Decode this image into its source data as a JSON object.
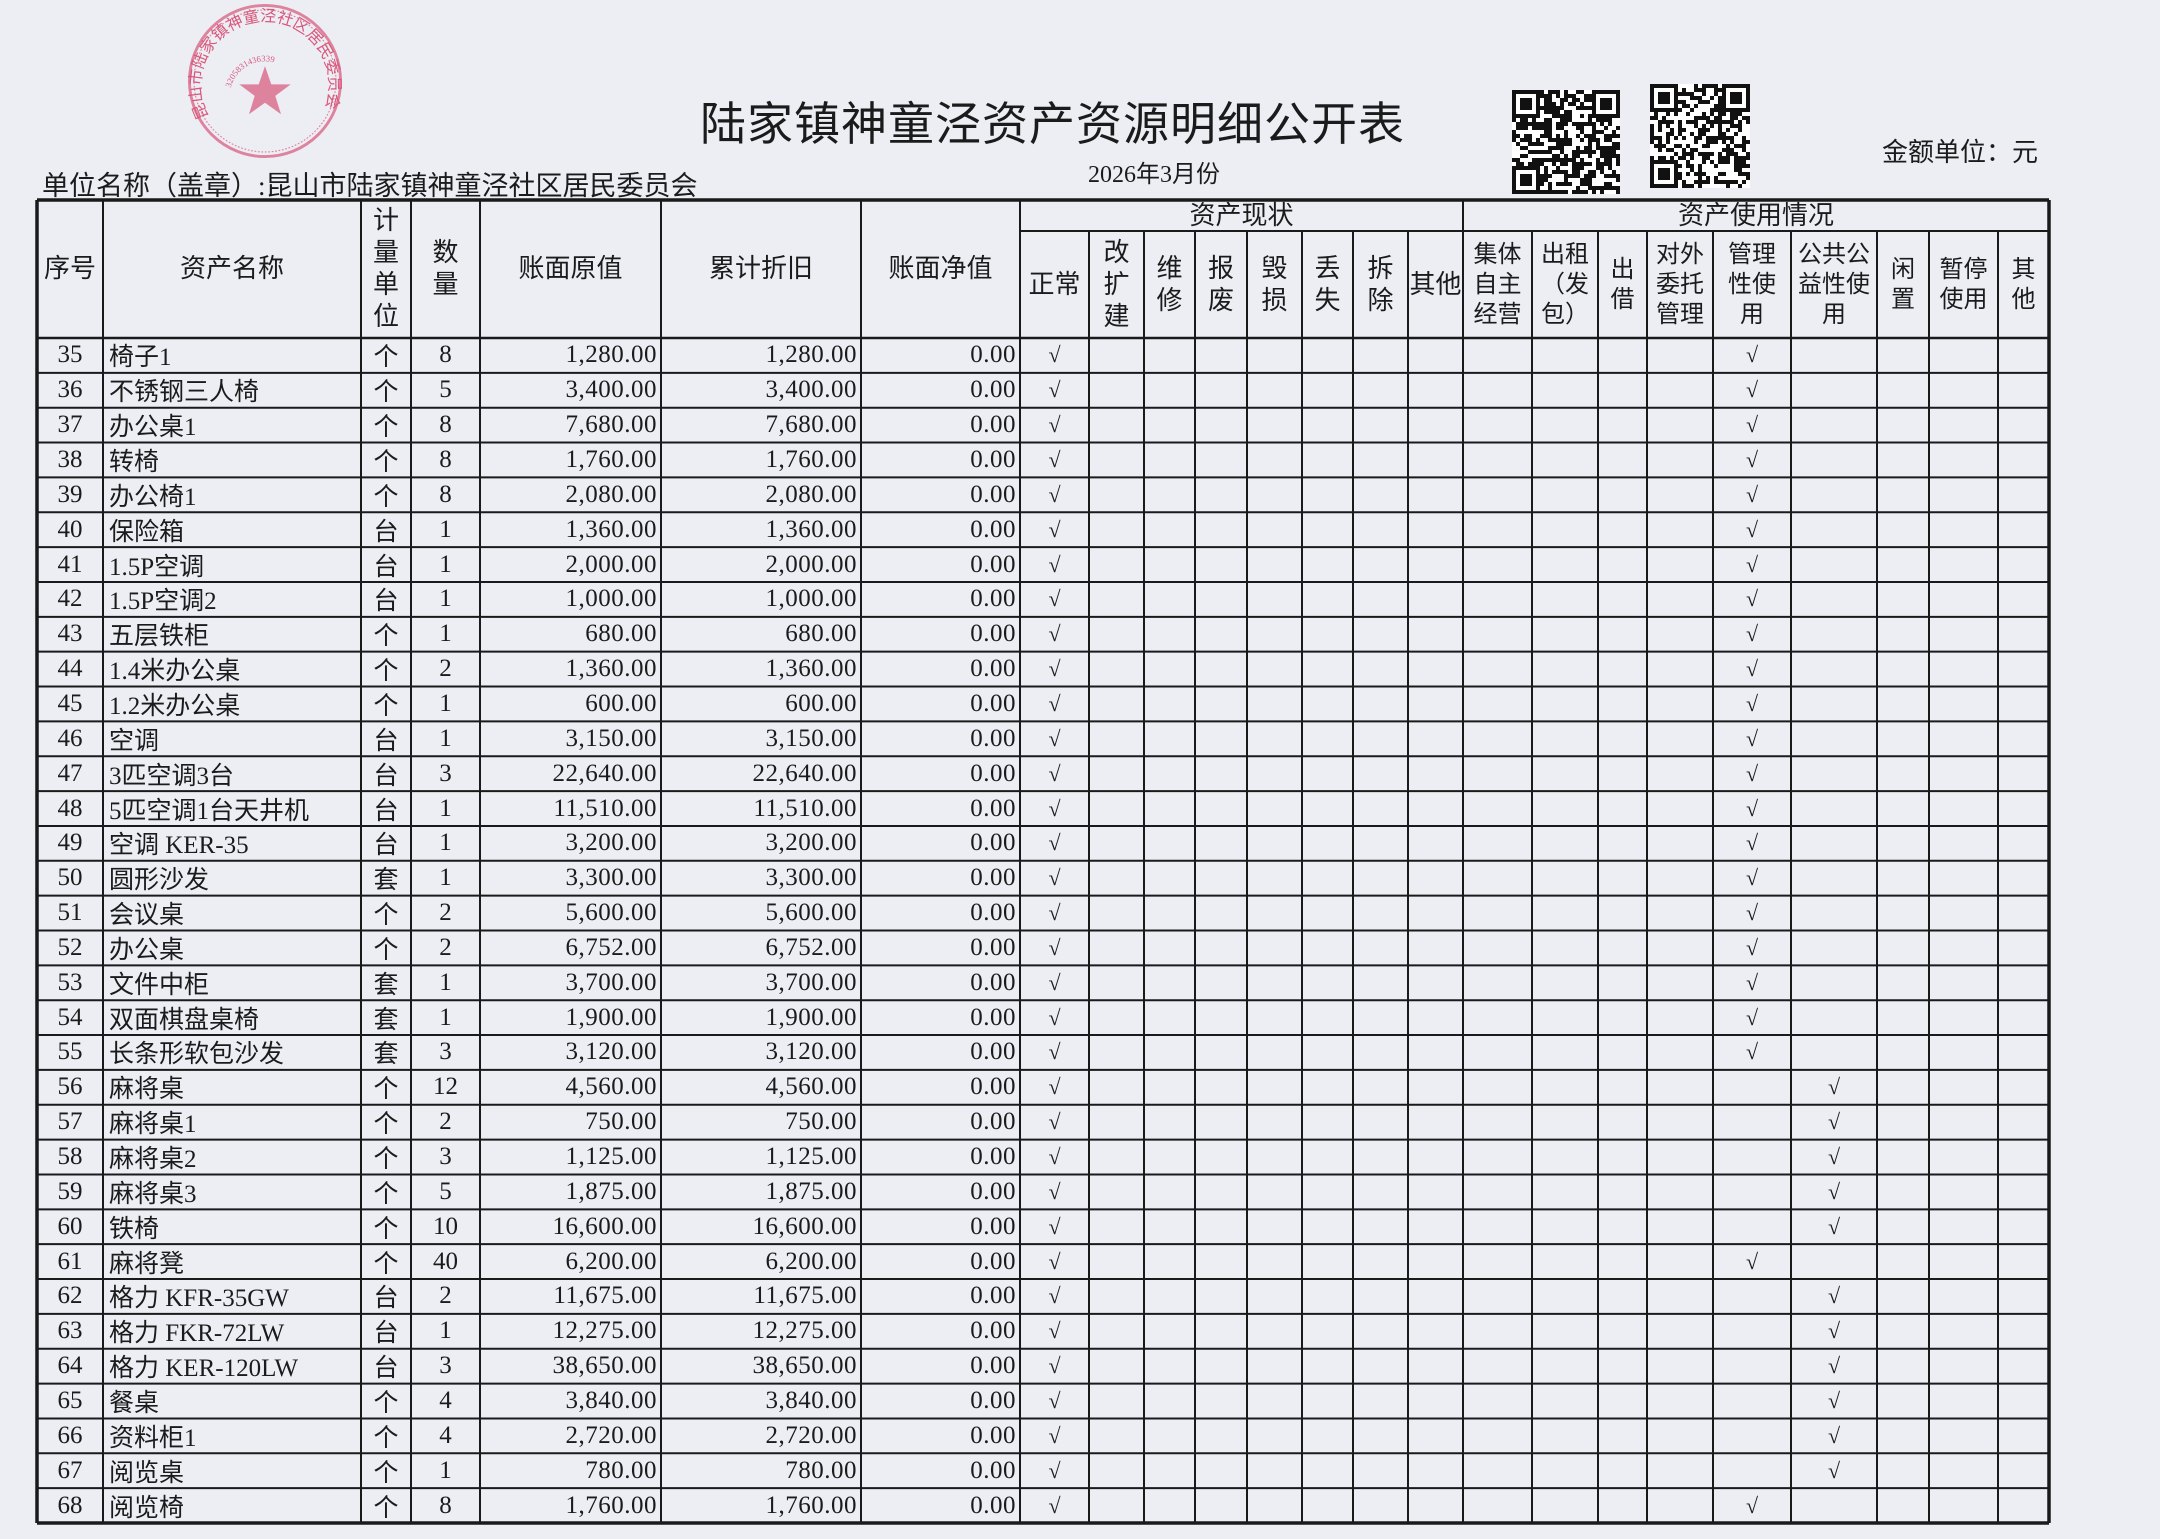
{
  "document": {
    "title": "陆家镇神童泾资产资源明细公开表",
    "unit_name": "单位名称（盖章）:昆山市陆家镇神童泾社区居民委员会",
    "report_date": "2026年3月份",
    "amount_unit": "金额单位：元"
  },
  "stamp": {
    "text": "昆山市陆家镇神童泾社区居民委员会",
    "code": "3205831436339",
    "color": "#d9577a"
  },
  "qr_codes": [
    "qr-code",
    "qr-code"
  ],
  "table": {
    "headers": {
      "seq": "序号",
      "name": "资产名称",
      "unit": "计\n量\n单\n位",
      "qty": "数\n量",
      "original": "账面原值",
      "depreciation": "累计折旧",
      "net": "账面净值",
      "status_group": "资产现状",
      "status": [
        "正常",
        "改\n扩\n建",
        "维\n修",
        "报\n废",
        "毁\n损",
        "丢\n失",
        "拆\n除",
        "其他"
      ],
      "usage_group": "资产使用情况",
      "usage": [
        "集体\n自主\n经营",
        "出租\n（发\n包）",
        "出\n借",
        "对外\n委托\n管理",
        "管理\n性使\n用",
        "公共公\n益性使\n用",
        "闲\n置",
        "暂停\n使用",
        "其\n他"
      ]
    },
    "check_symbol": "√",
    "rows": [
      {
        "seq": "35",
        "name": "椅子1",
        "unit": "个",
        "qty": "8",
        "original": "1,280.00",
        "depreciation": "1,280.00",
        "net": "0.00",
        "status": 0,
        "usage": 4
      },
      {
        "seq": "36",
        "name": "不锈钢三人椅",
        "unit": "个",
        "qty": "5",
        "original": "3,400.00",
        "depreciation": "3,400.00",
        "net": "0.00",
        "status": 0,
        "usage": 4
      },
      {
        "seq": "37",
        "name": "办公桌1",
        "unit": "个",
        "qty": "8",
        "original": "7,680.00",
        "depreciation": "7,680.00",
        "net": "0.00",
        "status": 0,
        "usage": 4
      },
      {
        "seq": "38",
        "name": "转椅",
        "unit": "个",
        "qty": "8",
        "original": "1,760.00",
        "depreciation": "1,760.00",
        "net": "0.00",
        "status": 0,
        "usage": 4
      },
      {
        "seq": "39",
        "name": "办公椅1",
        "unit": "个",
        "qty": "8",
        "original": "2,080.00",
        "depreciation": "2,080.00",
        "net": "0.00",
        "status": 0,
        "usage": 4
      },
      {
        "seq": "40",
        "name": "保险箱",
        "unit": "台",
        "qty": "1",
        "original": "1,360.00",
        "depreciation": "1,360.00",
        "net": "0.00",
        "status": 0,
        "usage": 4
      },
      {
        "seq": "41",
        "name": "1.5P空调",
        "unit": "台",
        "qty": "1",
        "original": "2,000.00",
        "depreciation": "2,000.00",
        "net": "0.00",
        "status": 0,
        "usage": 4
      },
      {
        "seq": "42",
        "name": "1.5P空调2",
        "unit": "台",
        "qty": "1",
        "original": "1,000.00",
        "depreciation": "1,000.00",
        "net": "0.00",
        "status": 0,
        "usage": 4
      },
      {
        "seq": "43",
        "name": "五层铁柜",
        "unit": "个",
        "qty": "1",
        "original": "680.00",
        "depreciation": "680.00",
        "net": "0.00",
        "status": 0,
        "usage": 4
      },
      {
        "seq": "44",
        "name": "1.4米办公桌",
        "unit": "个",
        "qty": "2",
        "original": "1,360.00",
        "depreciation": "1,360.00",
        "net": "0.00",
        "status": 0,
        "usage": 4
      },
      {
        "seq": "45",
        "name": "1.2米办公桌",
        "unit": "个",
        "qty": "1",
        "original": "600.00",
        "depreciation": "600.00",
        "net": "0.00",
        "status": 0,
        "usage": 4
      },
      {
        "seq": "46",
        "name": "空调",
        "unit": "台",
        "qty": "1",
        "original": "3,150.00",
        "depreciation": "3,150.00",
        "net": "0.00",
        "status": 0,
        "usage": 4
      },
      {
        "seq": "47",
        "name": "3匹空调3台",
        "unit": "台",
        "qty": "3",
        "original": "22,640.00",
        "depreciation": "22,640.00",
        "net": "0.00",
        "status": 0,
        "usage": 4
      },
      {
        "seq": "48",
        "name": "5匹空调1台天井机",
        "unit": "台",
        "qty": "1",
        "original": "11,510.00",
        "depreciation": "11,510.00",
        "net": "0.00",
        "status": 0,
        "usage": 4
      },
      {
        "seq": "49",
        "name": "空调 KER-35",
        "unit": "台",
        "qty": "1",
        "original": "3,200.00",
        "depreciation": "3,200.00",
        "net": "0.00",
        "status": 0,
        "usage": 4
      },
      {
        "seq": "50",
        "name": "圆形沙发",
        "unit": "套",
        "qty": "1",
        "original": "3,300.00",
        "depreciation": "3,300.00",
        "net": "0.00",
        "status": 0,
        "usage": 4
      },
      {
        "seq": "51",
        "name": "会议桌",
        "unit": "个",
        "qty": "2",
        "original": "5,600.00",
        "depreciation": "5,600.00",
        "net": "0.00",
        "status": 0,
        "usage": 4
      },
      {
        "seq": "52",
        "name": "办公桌",
        "unit": "个",
        "qty": "2",
        "original": "6,752.00",
        "depreciation": "6,752.00",
        "net": "0.00",
        "status": 0,
        "usage": 4
      },
      {
        "seq": "53",
        "name": "文件中柜",
        "unit": "套",
        "qty": "1",
        "original": "3,700.00",
        "depreciation": "3,700.00",
        "net": "0.00",
        "status": 0,
        "usage": 4
      },
      {
        "seq": "54",
        "name": "双面棋盘桌椅",
        "unit": "套",
        "qty": "1",
        "original": "1,900.00",
        "depreciation": "1,900.00",
        "net": "0.00",
        "status": 0,
        "usage": 4
      },
      {
        "seq": "55",
        "name": "长条形软包沙发",
        "unit": "套",
        "qty": "3",
        "original": "3,120.00",
        "depreciation": "3,120.00",
        "net": "0.00",
        "status": 0,
        "usage": 4
      },
      {
        "seq": "56",
        "name": "麻将桌",
        "unit": "个",
        "qty": "12",
        "original": "4,560.00",
        "depreciation": "4,560.00",
        "net": "0.00",
        "status": 0,
        "usage": 5
      },
      {
        "seq": "57",
        "name": "麻将桌1",
        "unit": "个",
        "qty": "2",
        "original": "750.00",
        "depreciation": "750.00",
        "net": "0.00",
        "status": 0,
        "usage": 5
      },
      {
        "seq": "58",
        "name": "麻将桌2",
        "unit": "个",
        "qty": "3",
        "original": "1,125.00",
        "depreciation": "1,125.00",
        "net": "0.00",
        "status": 0,
        "usage": 5
      },
      {
        "seq": "59",
        "name": "麻将桌3",
        "unit": "个",
        "qty": "5",
        "original": "1,875.00",
        "depreciation": "1,875.00",
        "net": "0.00",
        "status": 0,
        "usage": 5
      },
      {
        "seq": "60",
        "name": "铁椅",
        "unit": "个",
        "qty": "10",
        "original": "16,600.00",
        "depreciation": "16,600.00",
        "net": "0.00",
        "status": 0,
        "usage": 5
      },
      {
        "seq": "61",
        "name": "麻将凳",
        "unit": "个",
        "qty": "40",
        "original": "6,200.00",
        "depreciation": "6,200.00",
        "net": "0.00",
        "status": 0,
        "usage": 4
      },
      {
        "seq": "62",
        "name": "格力 KFR-35GW",
        "unit": "台",
        "qty": "2",
        "original": "11,675.00",
        "depreciation": "11,675.00",
        "net": "0.00",
        "status": 0,
        "usage": 5
      },
      {
        "seq": "63",
        "name": "格力 FKR-72LW",
        "unit": "台",
        "qty": "1",
        "original": "12,275.00",
        "depreciation": "12,275.00",
        "net": "0.00",
        "status": 0,
        "usage": 5
      },
      {
        "seq": "64",
        "name": "格力 KER-120LW",
        "unit": "台",
        "qty": "3",
        "original": "38,650.00",
        "depreciation": "38,650.00",
        "net": "0.00",
        "status": 0,
        "usage": 5
      },
      {
        "seq": "65",
        "name": "餐桌",
        "unit": "个",
        "qty": "4",
        "original": "3,840.00",
        "depreciation": "3,840.00",
        "net": "0.00",
        "status": 0,
        "usage": 5
      },
      {
        "seq": "66",
        "name": "资料柜1",
        "unit": "个",
        "qty": "4",
        "original": "2,720.00",
        "depreciation": "2,720.00",
        "net": "0.00",
        "status": 0,
        "usage": 5
      },
      {
        "seq": "67",
        "name": "阅览桌",
        "unit": "个",
        "qty": "1",
        "original": "780.00",
        "depreciation": "780.00",
        "net": "0.00",
        "status": 0,
        "usage": 5
      },
      {
        "seq": "68",
        "name": "阅览椅",
        "unit": "个",
        "qty": "8",
        "original": "1,760.00",
        "depreciation": "1,760.00",
        "net": "0.00",
        "status": 0,
        "usage": 4
      }
    ]
  }
}
